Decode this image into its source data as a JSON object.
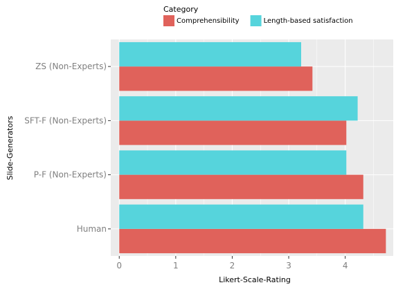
{
  "chart_data": {
    "type": "bar",
    "orientation": "horizontal",
    "categories": [
      "ZS (Non-Experts)",
      "SFT-F (Non-Experts)",
      "P-F (Non-Experts)",
      "Human"
    ],
    "series": [
      {
        "name": "Comprehensibility",
        "values": [
          3.42,
          4.02,
          4.32,
          4.72
        ],
        "color": "#e0625b"
      },
      {
        "name": "Length-based satisfaction",
        "values": [
          3.22,
          4.22,
          4.02,
          4.32
        ],
        "color": "#56d4dc"
      }
    ],
    "xlabel": "Likert-Scale-Rating",
    "ylabel": "Slide-Generators",
    "xlim": [
      -0.15,
      4.85
    ],
    "xticks": [
      "0",
      "1",
      "2",
      "3",
      "4"
    ],
    "grid": true,
    "legend_title": "Category",
    "legend_position": "top"
  }
}
